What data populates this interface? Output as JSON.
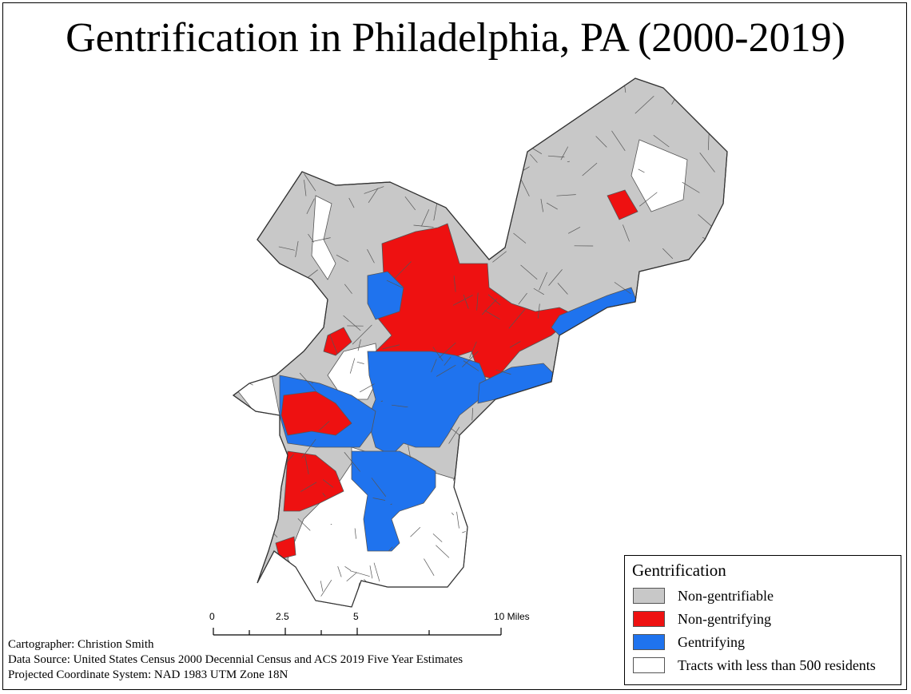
{
  "title": "Gentrification in Philadelphia, PA (2000-2019)",
  "legend": {
    "title": "Gentrification",
    "items": [
      {
        "label": "Non-gentrifiable",
        "color": "#c8c8c8"
      },
      {
        "label": "Non-gentrifying",
        "color": "#ee1111"
      },
      {
        "label": "Gentrifying",
        "color": "#1f73ee"
      },
      {
        "label": "Tracts with less than 500 residents",
        "color": "#ffffff"
      }
    ]
  },
  "scale_bar": {
    "labels": [
      "0",
      "2.5",
      "5",
      "10 Miles"
    ]
  },
  "credits": {
    "cartographer": "Cartographer: Christion Smith",
    "data_source": "Data Source: United States Census 2000 Decennial Census and ACS 2019 Five Year Estimates",
    "projection": "Projected Coordinate System: NAD 1983 UTM Zone 18N"
  },
  "colors": {
    "non_gentrifiable": "#c8c8c8",
    "non_gentrifying": "#ee1111",
    "gentrifying": "#1f73ee",
    "low_population": "#ffffff",
    "tract_border": "#555555"
  }
}
